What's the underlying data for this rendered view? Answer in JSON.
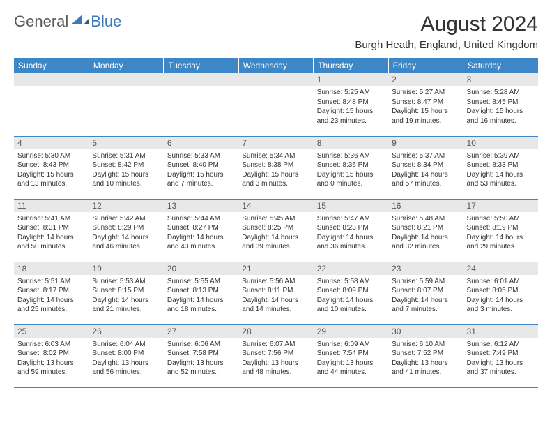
{
  "logo": {
    "text1": "General",
    "text2": "Blue"
  },
  "title": "August 2024",
  "location": "Burgh Heath, England, United Kingdom",
  "colors": {
    "header_bg": "#3d87c7",
    "header_text": "#ffffff",
    "daynum_bg": "#e8e8e8",
    "daynum_text": "#555555",
    "body_text": "#333333",
    "rule": "#3d87c7",
    "logo_gray": "#5a5a5a",
    "logo_blue": "#3a7ab8"
  },
  "weekdays": [
    "Sunday",
    "Monday",
    "Tuesday",
    "Wednesday",
    "Thursday",
    "Friday",
    "Saturday"
  ],
  "weeks": [
    [
      null,
      null,
      null,
      null,
      {
        "n": "1",
        "sr": "5:25 AM",
        "ss": "8:48 PM",
        "dl": "15 hours and 23 minutes."
      },
      {
        "n": "2",
        "sr": "5:27 AM",
        "ss": "8:47 PM",
        "dl": "15 hours and 19 minutes."
      },
      {
        "n": "3",
        "sr": "5:28 AM",
        "ss": "8:45 PM",
        "dl": "15 hours and 16 minutes."
      }
    ],
    [
      {
        "n": "4",
        "sr": "5:30 AM",
        "ss": "8:43 PM",
        "dl": "15 hours and 13 minutes."
      },
      {
        "n": "5",
        "sr": "5:31 AM",
        "ss": "8:42 PM",
        "dl": "15 hours and 10 minutes."
      },
      {
        "n": "6",
        "sr": "5:33 AM",
        "ss": "8:40 PM",
        "dl": "15 hours and 7 minutes."
      },
      {
        "n": "7",
        "sr": "5:34 AM",
        "ss": "8:38 PM",
        "dl": "15 hours and 3 minutes."
      },
      {
        "n": "8",
        "sr": "5:36 AM",
        "ss": "8:36 PM",
        "dl": "15 hours and 0 minutes."
      },
      {
        "n": "9",
        "sr": "5:37 AM",
        "ss": "8:34 PM",
        "dl": "14 hours and 57 minutes."
      },
      {
        "n": "10",
        "sr": "5:39 AM",
        "ss": "8:33 PM",
        "dl": "14 hours and 53 minutes."
      }
    ],
    [
      {
        "n": "11",
        "sr": "5:41 AM",
        "ss": "8:31 PM",
        "dl": "14 hours and 50 minutes."
      },
      {
        "n": "12",
        "sr": "5:42 AM",
        "ss": "8:29 PM",
        "dl": "14 hours and 46 minutes."
      },
      {
        "n": "13",
        "sr": "5:44 AM",
        "ss": "8:27 PM",
        "dl": "14 hours and 43 minutes."
      },
      {
        "n": "14",
        "sr": "5:45 AM",
        "ss": "8:25 PM",
        "dl": "14 hours and 39 minutes."
      },
      {
        "n": "15",
        "sr": "5:47 AM",
        "ss": "8:23 PM",
        "dl": "14 hours and 36 minutes."
      },
      {
        "n": "16",
        "sr": "5:48 AM",
        "ss": "8:21 PM",
        "dl": "14 hours and 32 minutes."
      },
      {
        "n": "17",
        "sr": "5:50 AM",
        "ss": "8:19 PM",
        "dl": "14 hours and 29 minutes."
      }
    ],
    [
      {
        "n": "18",
        "sr": "5:51 AM",
        "ss": "8:17 PM",
        "dl": "14 hours and 25 minutes."
      },
      {
        "n": "19",
        "sr": "5:53 AM",
        "ss": "8:15 PM",
        "dl": "14 hours and 21 minutes."
      },
      {
        "n": "20",
        "sr": "5:55 AM",
        "ss": "8:13 PM",
        "dl": "14 hours and 18 minutes."
      },
      {
        "n": "21",
        "sr": "5:56 AM",
        "ss": "8:11 PM",
        "dl": "14 hours and 14 minutes."
      },
      {
        "n": "22",
        "sr": "5:58 AM",
        "ss": "8:09 PM",
        "dl": "14 hours and 10 minutes."
      },
      {
        "n": "23",
        "sr": "5:59 AM",
        "ss": "8:07 PM",
        "dl": "14 hours and 7 minutes."
      },
      {
        "n": "24",
        "sr": "6:01 AM",
        "ss": "8:05 PM",
        "dl": "14 hours and 3 minutes."
      }
    ],
    [
      {
        "n": "25",
        "sr": "6:03 AM",
        "ss": "8:02 PM",
        "dl": "13 hours and 59 minutes."
      },
      {
        "n": "26",
        "sr": "6:04 AM",
        "ss": "8:00 PM",
        "dl": "13 hours and 56 minutes."
      },
      {
        "n": "27",
        "sr": "6:06 AM",
        "ss": "7:58 PM",
        "dl": "13 hours and 52 minutes."
      },
      {
        "n": "28",
        "sr": "6:07 AM",
        "ss": "7:56 PM",
        "dl": "13 hours and 48 minutes."
      },
      {
        "n": "29",
        "sr": "6:09 AM",
        "ss": "7:54 PM",
        "dl": "13 hours and 44 minutes."
      },
      {
        "n": "30",
        "sr": "6:10 AM",
        "ss": "7:52 PM",
        "dl": "13 hours and 41 minutes."
      },
      {
        "n": "31",
        "sr": "6:12 AM",
        "ss": "7:49 PM",
        "dl": "13 hours and 37 minutes."
      }
    ]
  ],
  "labels": {
    "sunrise": "Sunrise:",
    "sunset": "Sunset:",
    "daylight": "Daylight:"
  }
}
